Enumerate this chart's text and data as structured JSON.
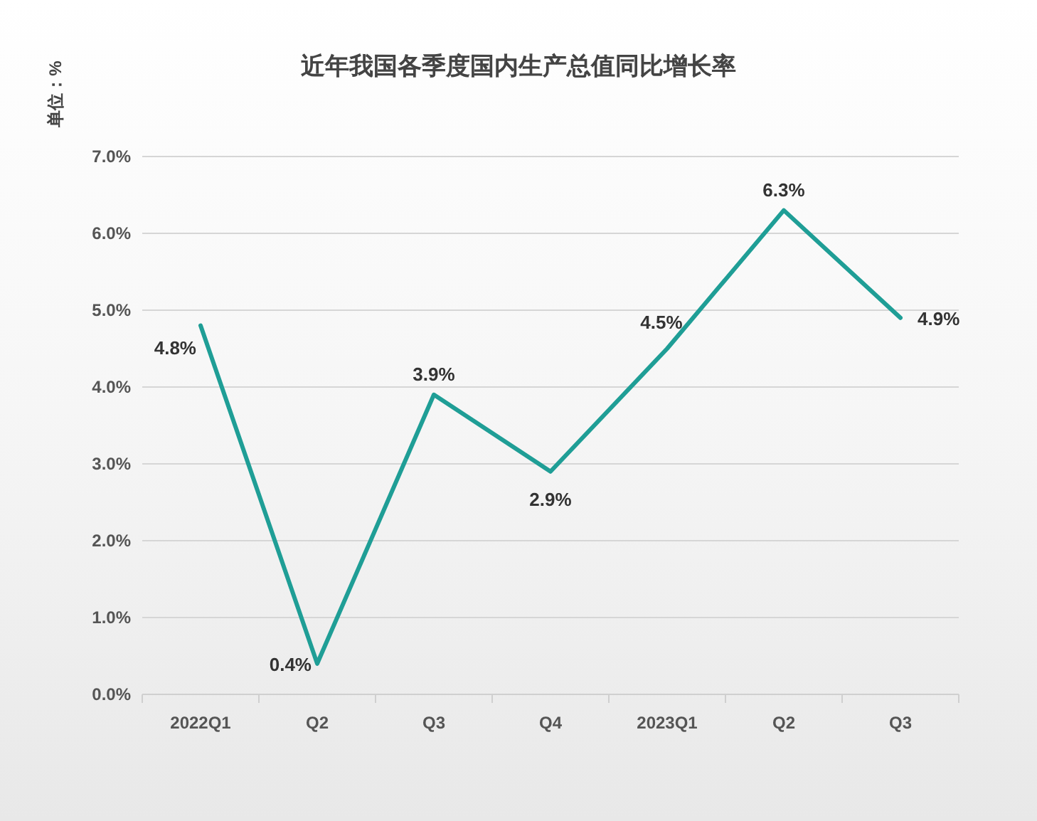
{
  "chart_data": {
    "type": "line",
    "title": "近年我国各季度国内生产总值同比增长率",
    "ylabel": "单位：%",
    "categories": [
      "2022Q1",
      "Q2",
      "Q3",
      "Q4",
      "2023Q1",
      "Q2",
      "Q3"
    ],
    "series": [
      {
        "color": "#1f9e96",
        "values": [
          4.8,
          0.4,
          3.9,
          2.9,
          4.5,
          6.3,
          4.9
        ],
        "value_labels": [
          "4.8%",
          "0.4%",
          "3.9%",
          "2.9%",
          "4.5%",
          "6.3%",
          "4.9%"
        ]
      }
    ],
    "ylim": [
      0,
      7
    ],
    "yticks": [
      {
        "value": 0,
        "label": "0.0%"
      },
      {
        "value": 1,
        "label": "1.0%"
      },
      {
        "value": 2,
        "label": "2.0%"
      },
      {
        "value": 3,
        "label": "3.0%"
      },
      {
        "value": 4,
        "label": "4.0%"
      },
      {
        "value": 5,
        "label": "5.0%"
      },
      {
        "value": 6,
        "label": "6.0%"
      },
      {
        "value": 7,
        "label": "7.0%"
      }
    ],
    "grid": "y"
  }
}
